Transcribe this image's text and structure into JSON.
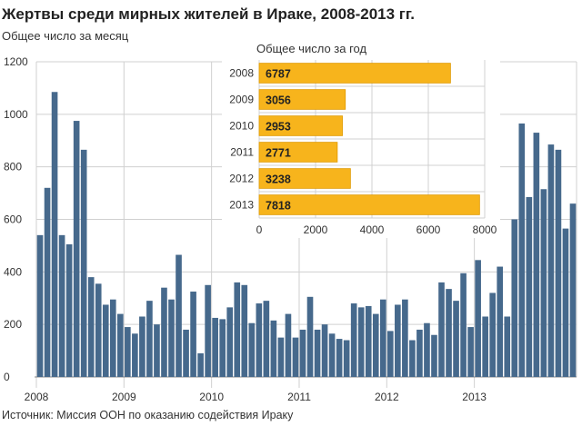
{
  "header": {
    "title": "Жертвы среди мирных жителей в Ираке, 2008-2013 гг.",
    "subtitle": "Общее число за месяц"
  },
  "footer": {
    "source": "Источник: Миссия ООН по оказанию содействия Ираку"
  },
  "colors": {
    "monthly_bar": "#46698c",
    "annual_bar": "#f7b41c",
    "annual_bar_border": "#e09a00",
    "grid": "#d0d0d0",
    "axis_text": "#333333"
  },
  "chart_data": [
    {
      "type": "bar",
      "title": "",
      "subtitle": "Общее число за месяц",
      "x_tick_labels": [
        "2008",
        "2009",
        "2010",
        "2011",
        "2012",
        "2013"
      ],
      "y_ticks": [
        0,
        200,
        400,
        600,
        800,
        1000,
        1200
      ],
      "ylim": [
        0,
        1200
      ],
      "grid": true,
      "series": [
        {
          "values": [
            540,
            720,
            1085,
            540,
            505,
            975,
            865,
            380,
            355,
            275,
            295,
            240,
            190,
            165,
            230,
            290,
            200,
            340,
            295,
            465,
            180,
            325,
            90,
            350,
            225,
            220,
            265,
            360,
            350,
            205,
            280,
            290,
            215,
            150,
            240,
            150,
            180,
            305,
            180,
            200,
            165,
            145,
            140,
            280,
            265,
            270,
            240,
            295,
            175,
            275,
            295,
            140,
            180,
            205,
            160,
            360,
            335,
            290,
            395,
            190,
            445,
            230,
            320,
            420,
            230,
            600,
            965,
            685,
            930,
            715,
            885,
            865,
            565,
            660
          ]
        }
      ]
    },
    {
      "type": "bar",
      "orientation": "horizontal",
      "title": "Общее число за год",
      "categories": [
        "2008",
        "2009",
        "2010",
        "2011",
        "2012",
        "2013"
      ],
      "values": [
        6787,
        3056,
        2953,
        2771,
        3238,
        7818
      ],
      "x_ticks": [
        0,
        2000,
        4000,
        6000,
        8000
      ],
      "xlim": [
        0,
        8000
      ],
      "grid": true
    }
  ]
}
